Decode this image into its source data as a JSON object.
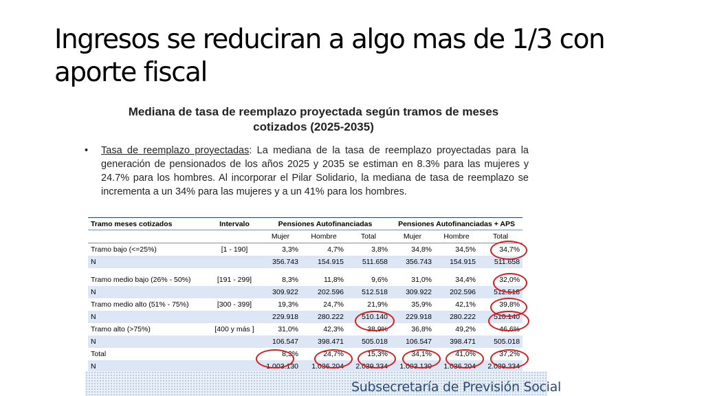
{
  "slide": {
    "title": "Ingresos se reduciran a algo mas de 1/3 con aporte fiscal"
  },
  "figure": {
    "title_line1": "Mediana de tasa de reemplazo proyectada según tramos de meses",
    "title_line2": "cotizados (2025-2035)",
    "bullet_symbol": "•",
    "bullet_lead": "Tasa de reemplazo proyectadas",
    "bullet_text": ": La mediana de la tasa de reemplazo proyectadas para la generación de pensionados de los años 2025 y 2035 se estiman en 8.3% para las mujeres y 24.7% para los hombres. Al incorporar el Pilar Solidario, la mediana de tasa de reemplazo se incrementa a un 34% para las mujeres y a un 41% para los hombres."
  },
  "table": {
    "headers": {
      "tramo": "Tramo meses cotizados",
      "intervalo": "Intervalo",
      "group1": "Pensiones Autofinanciadas",
      "group2": "Pensiones Autofinanciadas + APS"
    },
    "subheaders": [
      "Mujer",
      "Hombre",
      "Total",
      "Mujer",
      "Hombre",
      "Total"
    ],
    "rows": [
      {
        "label": "Tramo bajo (<=25%)",
        "intervalo": "[1 - 190]",
        "values": [
          "3,3%",
          "4,7%",
          "3,8%",
          "34,8%",
          "34,5%",
          "34,7%"
        ]
      },
      {
        "label": "N",
        "intervalo": "",
        "values": [
          "356.743",
          "154.915",
          "511.658",
          "356.743",
          "154.915",
          "511.658"
        ]
      },
      {
        "label": "Tramo medio bajo (26% - 50%)",
        "intervalo": "[191 - 299]",
        "values": [
          "8,3%",
          "11,8%",
          "9,6%",
          "31,0%",
          "34,4%",
          "32,0%"
        ]
      },
      {
        "label": "N",
        "intervalo": "",
        "values": [
          "309.922",
          "202.596",
          "512.518",
          "309.922",
          "202.596",
          "512.518"
        ]
      },
      {
        "label": "Tramo medio alto (51% - 75%)",
        "intervalo": "[300 - 399]",
        "values": [
          "19,3%",
          "24,7%",
          "21,9%",
          "35,9%",
          "42,1%",
          "39,8%"
        ]
      },
      {
        "label": "N",
        "intervalo": "",
        "values": [
          "229.918",
          "280.222",
          "510.140",
          "229.918",
          "280.222",
          "510.140"
        ]
      },
      {
        "label": "Tramo alto (>75%)",
        "intervalo": "[400  y más ]",
        "values": [
          "31,0%",
          "42,3%",
          "38,9%",
          "36,8%",
          "49,2%",
          "46,6%"
        ]
      },
      {
        "label": "N",
        "intervalo": "",
        "values": [
          "106.547",
          "398.471",
          "505.018",
          "106.547",
          "398.471",
          "505.018"
        ]
      },
      {
        "label": "Total",
        "intervalo": "",
        "values": [
          "8,3%",
          "24,7%",
          "15,3%",
          "34,1%",
          "41,0%",
          "37,2%"
        ]
      },
      {
        "label": "N",
        "intervalo": "",
        "values": [
          "1.003.130",
          "1.036.204",
          "2.039.334",
          "1.003.130",
          "1.036.204",
          "2.039.334"
        ]
      }
    ]
  },
  "footer": {
    "text": "Subsecretaría de Previsión Social"
  },
  "colors": {
    "circle": "#d61d1d",
    "band": "#dde6f4",
    "rule": "#1f3f7a",
    "footer_text": "#2a4a78"
  }
}
